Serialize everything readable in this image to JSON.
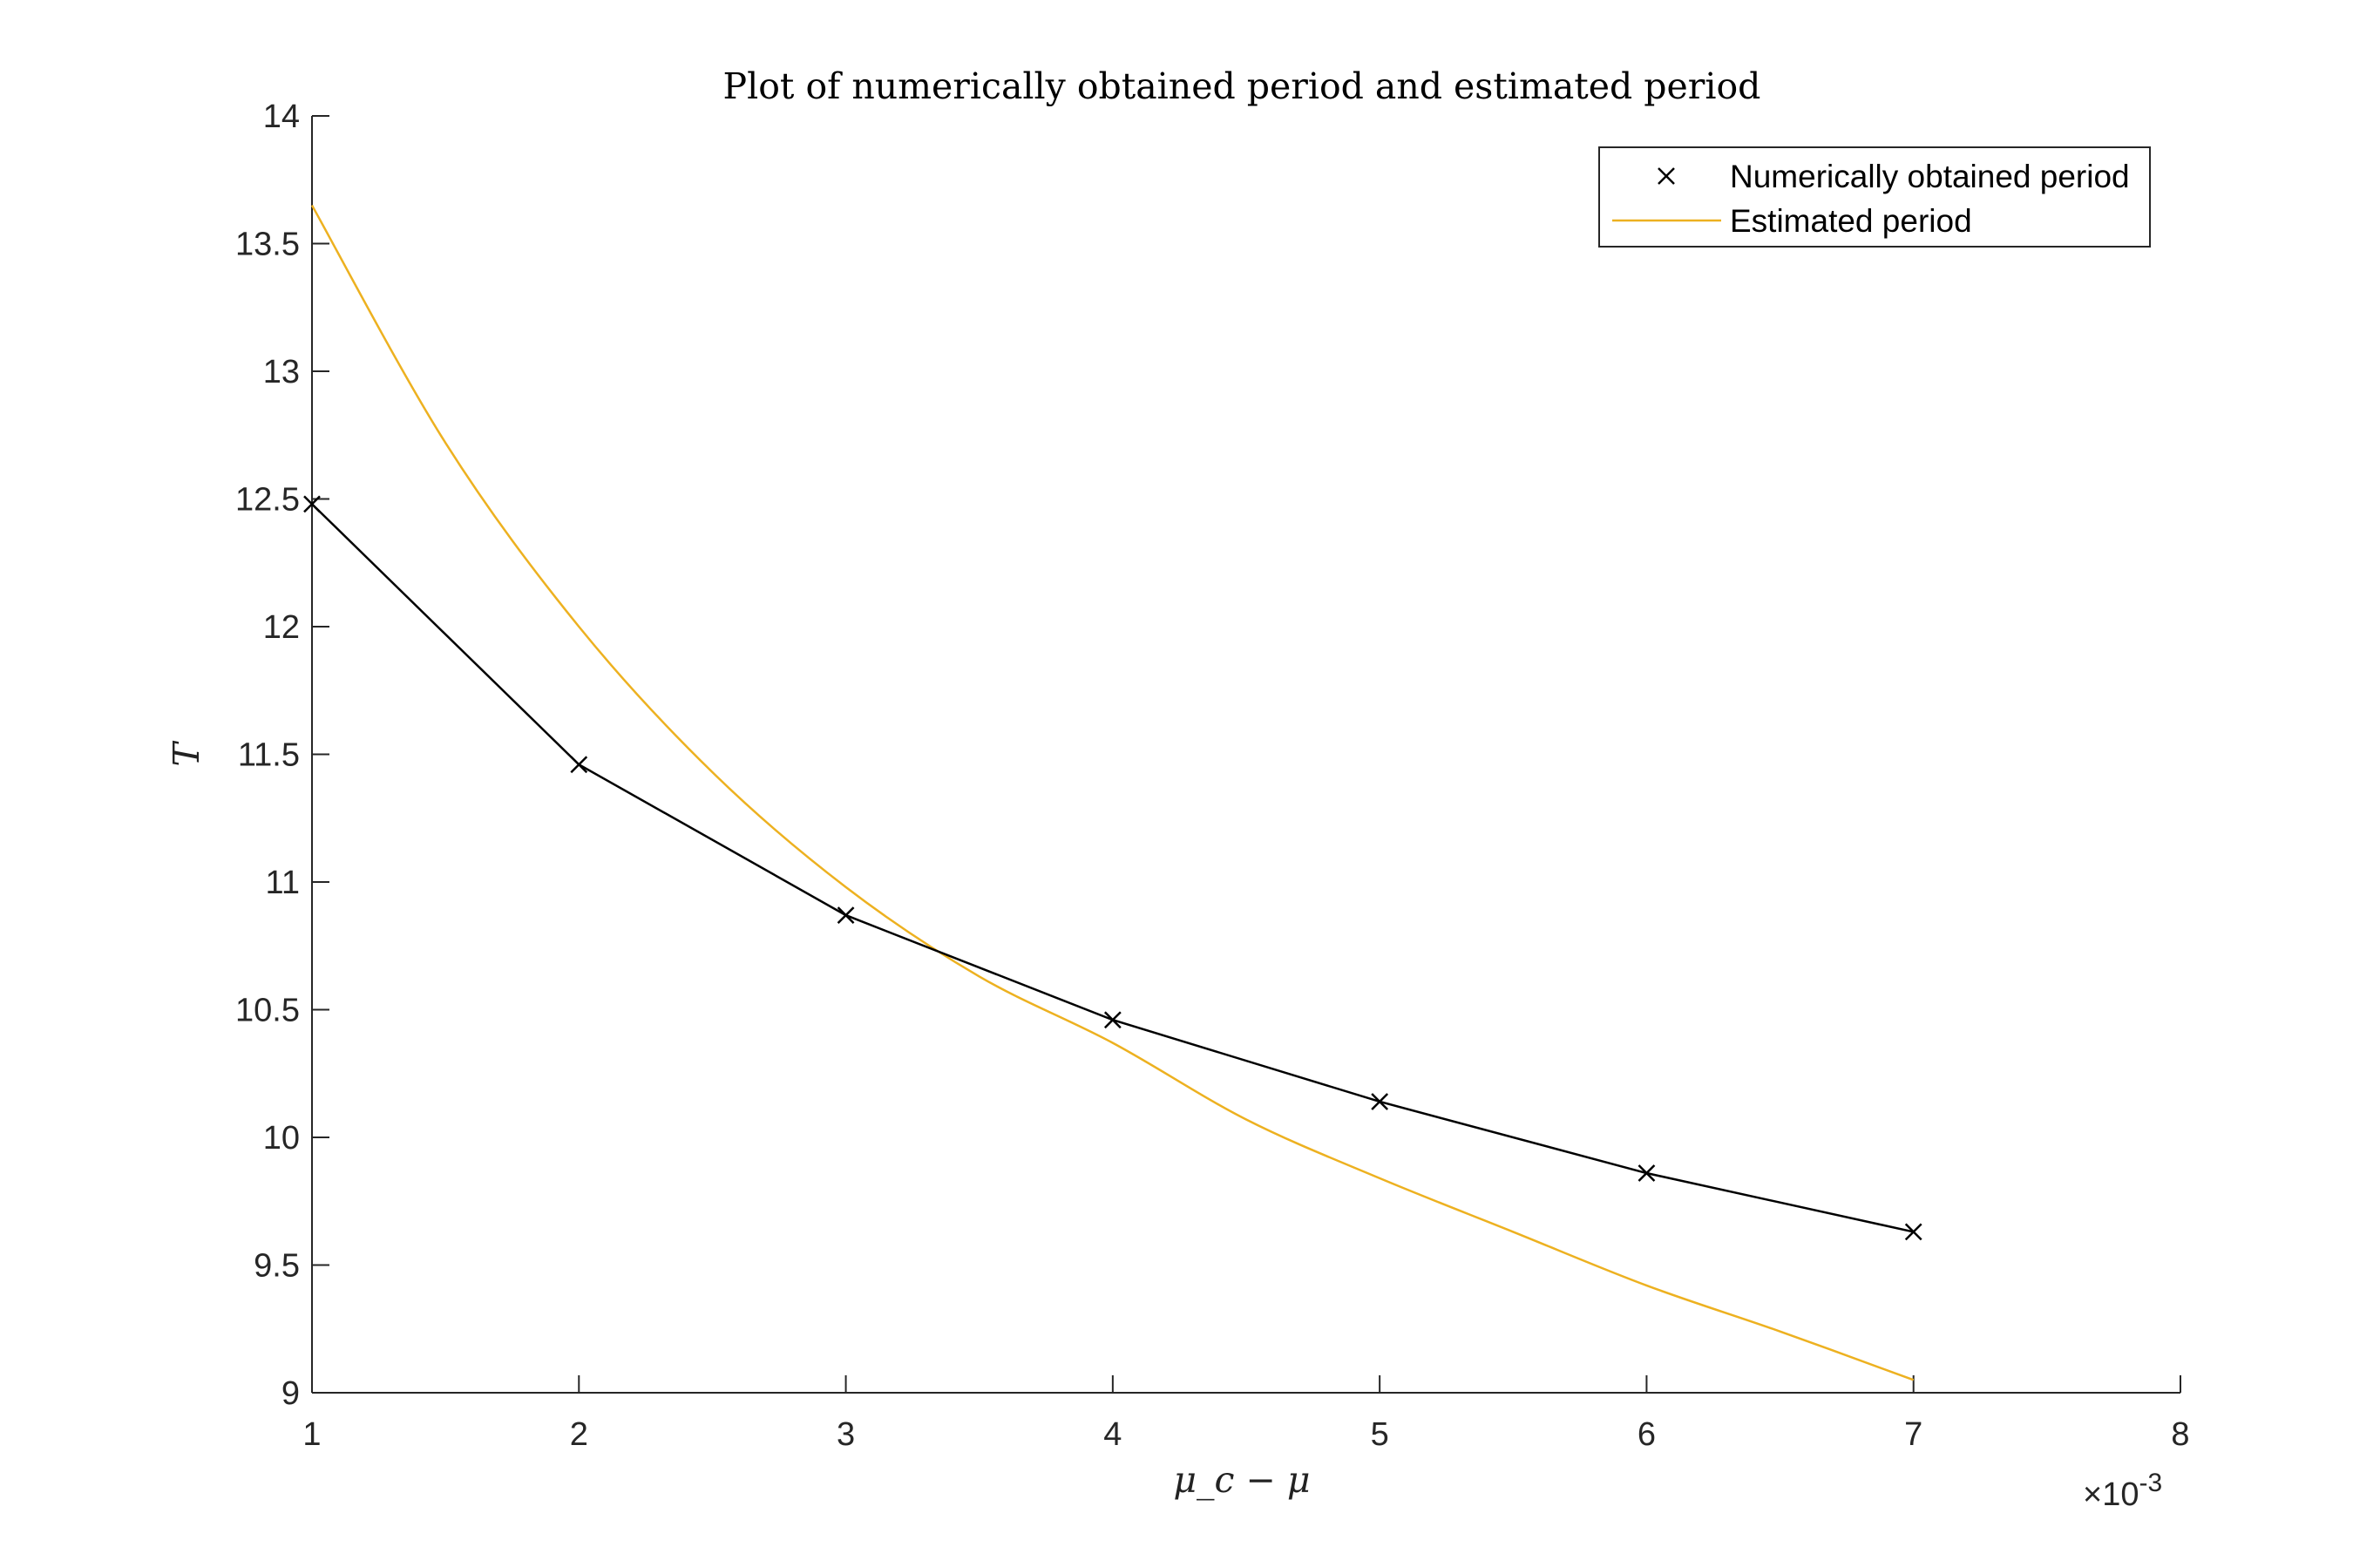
{
  "chart_data": {
    "type": "line",
    "title": "Plot of numerically obtained period and estimated period",
    "xlabel": "μ_c − μ",
    "ylabel": "T",
    "x_exponent_label": "×10-3",
    "x_exponent": "-3",
    "x_multiplier_symbol": "×10",
    "xlim": [
      1,
      8
    ],
    "ylim": [
      9,
      14
    ],
    "xticks": [
      "1",
      "2",
      "3",
      "4",
      "5",
      "6",
      "7",
      "8"
    ],
    "yticks": [
      "9",
      "9.5",
      "10",
      "10.5",
      "11",
      "11.5",
      "12",
      "12.5",
      "13",
      "13.5",
      "14"
    ],
    "grid": false,
    "legend_position": "top-right",
    "series": [
      {
        "name": "Numerically obtained period",
        "color": "#000000",
        "marker": "x",
        "x": [
          1,
          2,
          3,
          4,
          5,
          6,
          7
        ],
        "y": [
          12.48,
          11.46,
          10.87,
          10.46,
          10.14,
          9.86,
          9.63
        ]
      },
      {
        "name": "Estimated period",
        "color": "#EDB120",
        "marker": "none",
        "x": [
          1.0,
          1.5,
          2.0,
          2.5,
          3.0,
          3.5,
          4.0,
          4.5,
          5.0,
          5.5,
          6.0,
          6.5,
          7.0
        ],
        "y": [
          13.65,
          12.72,
          12.0,
          11.43,
          10.98,
          10.63,
          10.37,
          10.07,
          9.84,
          9.63,
          9.42,
          9.24,
          9.05
        ]
      }
    ]
  }
}
